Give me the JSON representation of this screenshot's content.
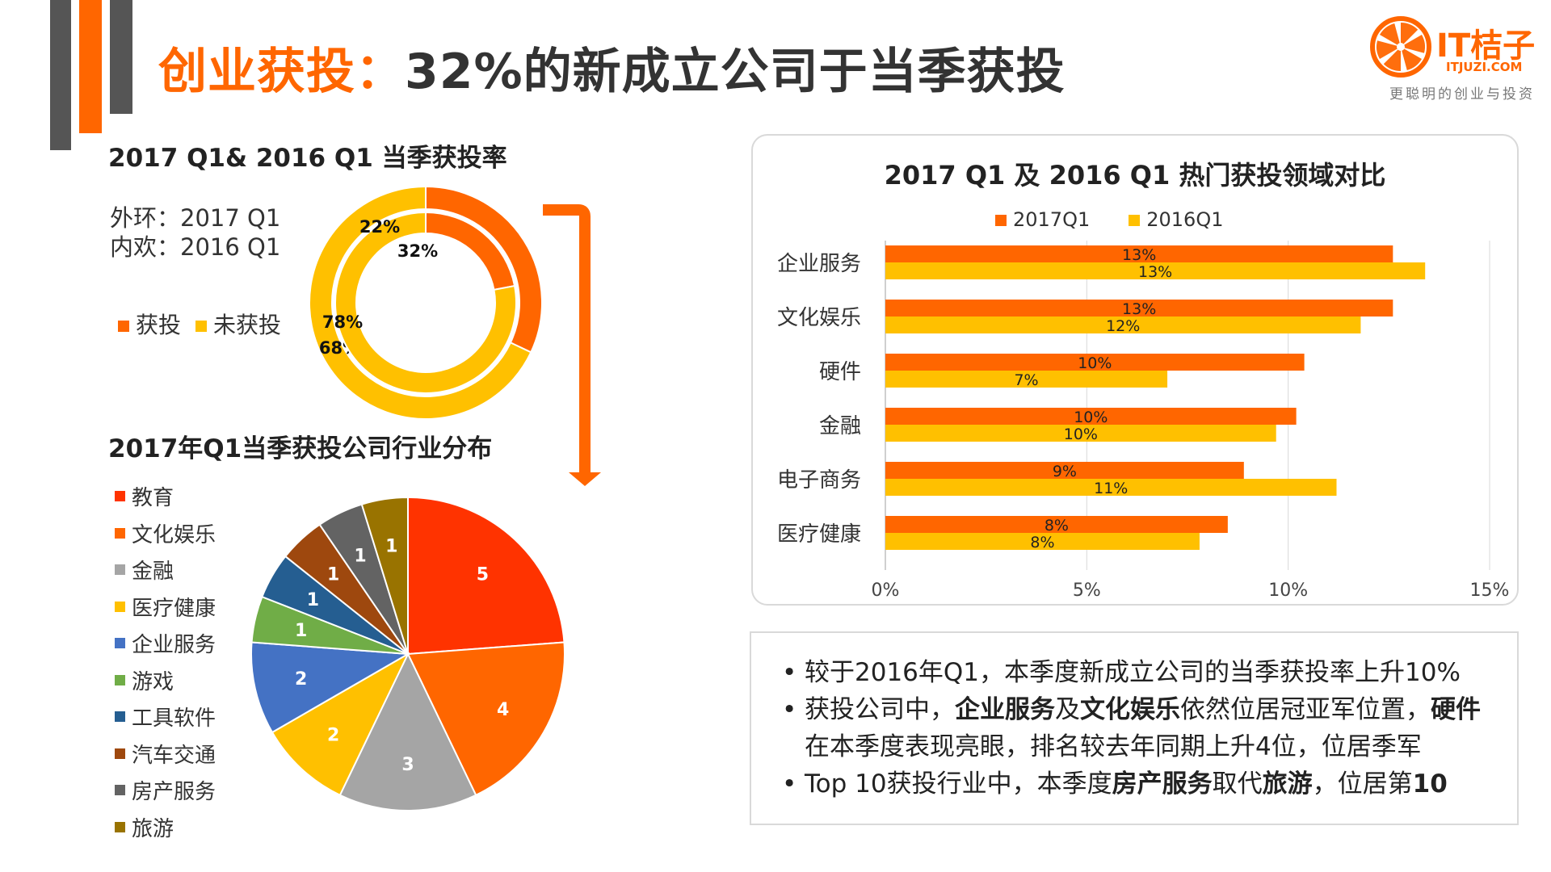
{
  "title": {
    "highlight": "创业获投：",
    "rest": "32%的新成立公司于当季获投"
  },
  "logo": {
    "name": "IT桔子",
    "url": "ITJUZI.COM",
    "tagline": "更聪明的创业与投资"
  },
  "ring_section": {
    "title": "2017 Q1& 2016 Q1 当季获投率",
    "outer_note": "外环：2017 Q1",
    "inner_note": "内欢：2016 Q1",
    "legend_invested": "获投",
    "legend_not_invested": "未获投"
  },
  "pie_section": {
    "title": "2017年Q1当季获投公司行业分布"
  },
  "bar_section": {
    "title": "2017 Q1 及 2016 Q1 热门获投领域对比"
  },
  "notes": {
    "line1": "较于2016年Q1，本季度新成立公司的当季获投率上升10%",
    "line2_a": "获投公司中，",
    "line2_b": "企业服务",
    "line2_c": "及",
    "line2_d": "文化娱乐",
    "line2_e": "依然位居冠亚军位置，",
    "line2_f": "硬件",
    "line2_g": "在本季度表现亮眼，排名较去年同期上升4位，位居季军",
    "line3_a": "Top 10获投行业中，本季度",
    "line3_b": "房产服务",
    "line3_c": "取代",
    "line3_d": "旅游",
    "line3_e": "，位居第",
    "line3_f": "10"
  },
  "colors": {
    "orange": "#FF6600",
    "yellow": "#FFC000",
    "dark_gray": "#555555"
  },
  "chart_data": [
    {
      "type": "pie",
      "subtype": "double-donut",
      "title": "2017 Q1& 2016 Q1 当季获投率",
      "rings": [
        {
          "name": "2017 Q1",
          "position": "outer",
          "slices": [
            {
              "label": "获投",
              "value": 32,
              "text": "32%"
            },
            {
              "label": "未获投",
              "value": 68,
              "text": "68%"
            }
          ]
        },
        {
          "name": "2016 Q1",
          "position": "inner",
          "slices": [
            {
              "label": "获投",
              "value": 22,
              "text": "22%"
            },
            {
              "label": "未获投",
              "value": 78,
              "text": "78%"
            }
          ]
        }
      ],
      "colors": [
        "#FF6600",
        "#FFC000"
      ]
    },
    {
      "type": "pie",
      "title": "2017年Q1当季获投公司行业分布",
      "categories": [
        "教育",
        "文化娱乐",
        "金融",
        "医疗健康",
        "企业服务",
        "游戏",
        "工具软件",
        "汽车交通",
        "房产服务",
        "旅游"
      ],
      "values": [
        5,
        4,
        3,
        2,
        2,
        1,
        1,
        1,
        1,
        1
      ],
      "colors": [
        "#FF3300",
        "#FF6600",
        "#A5A5A5",
        "#FFC000",
        "#4472C4",
        "#70AD47",
        "#255E91",
        "#9E480E",
        "#636363",
        "#997300"
      ]
    },
    {
      "type": "bar",
      "orientation": "horizontal",
      "title": "2017 Q1 及 2016 Q1 热门获投领域对比",
      "categories": [
        "企业服务",
        "文化娱乐",
        "硬件",
        "金融",
        "电子商务",
        "医疗健康"
      ],
      "series": [
        {
          "name": "2017Q1",
          "values": [
            12.6,
            12.6,
            10.4,
            10.2,
            8.9,
            8.5
          ],
          "labels": [
            "13%",
            "13%",
            "10%",
            "10%",
            "9%",
            "8%"
          ],
          "color": "#FF6600"
        },
        {
          "name": "2016Q1",
          "values": [
            13.4,
            11.8,
            7.0,
            9.7,
            11.2,
            7.8
          ],
          "labels": [
            "13%",
            "12%",
            "7%",
            "10%",
            "11%",
            "8%"
          ],
          "color": "#FFC000"
        }
      ],
      "xlim": [
        0,
        15
      ],
      "xticks": [
        "0%",
        "5%",
        "10%",
        "15%"
      ]
    }
  ]
}
